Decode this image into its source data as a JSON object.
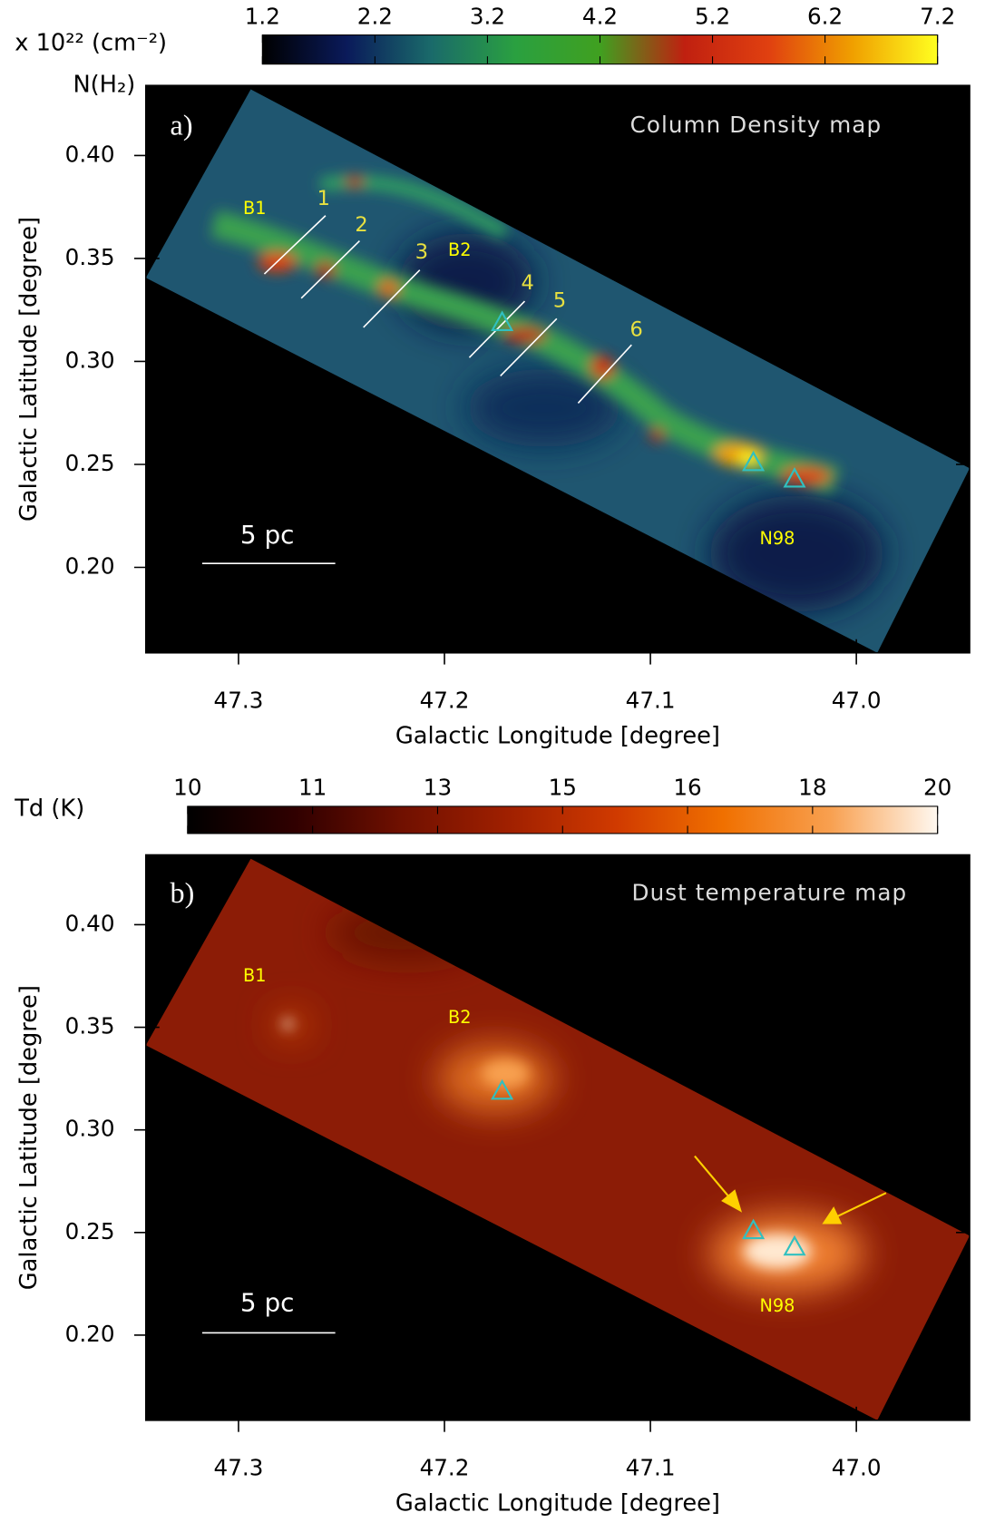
{
  "chart_data": [
    {
      "type": "map",
      "panel_label": "a)",
      "title": "Column Density map",
      "colorbar_label": "x 10²² (cm⁻²)",
      "colorbar_label2": "N(H₂)",
      "colorbar_ticks": [
        1.2,
        2.2,
        3.2,
        4.2,
        5.2,
        6.2,
        7.2
      ],
      "colormap": [
        "#000000",
        "#0a1a5a",
        "#1a6a6a",
        "#2aa040",
        "#40a020",
        "#c02010",
        "#e04010",
        "#f0a000",
        "#ffff20"
      ],
      "xlabel": "Galactic Longitude [degree]",
      "ylabel": "Galactic Latitude [degree]",
      "xlim": [
        47.345,
        46.945
      ],
      "ylim": [
        0.1585,
        0.434
      ],
      "xticks": [
        47.3,
        47.2,
        47.1,
        {
          "value": 47,
          "label": "47.0"
        }
      ],
      "yticks": [
        {
          "value": 0.2,
          "label": "0.20"
        },
        0.25,
        {
          "value": 0.3,
          "label": "0.30"
        },
        0.35,
        {
          "value": 0.4,
          "label": "0.40"
        }
      ],
      "annotations": [
        "B1",
        "B2",
        "N98"
      ],
      "cuts": [
        "1",
        "2",
        "3",
        "4",
        "5",
        "6"
      ],
      "scale_bar": "5 pc",
      "sources": {
        "x": [
          47.172,
          47.05,
          47.03
        ],
        "y": [
          0.319,
          0.251,
          0.243
        ]
      }
    },
    {
      "type": "map",
      "panel_label": "b)",
      "title": "Dust temperature map",
      "colorbar_label": "Td (K)",
      "colorbar_ticks": [
        10,
        11,
        13,
        15,
        16,
        18,
        20
      ],
      "colormap": [
        "#000000",
        "#300000",
        "#701000",
        "#a02000",
        "#d03a00",
        "#f07000",
        "#f8a050",
        "#fff8f0"
      ],
      "xlabel": "Galactic Longitude [degree]",
      "ylabel": "Galactic Latitude [degree]",
      "xlim": [
        47.345,
        46.945
      ],
      "ylim": [
        0.1585,
        0.434
      ],
      "xticks": [
        47.3,
        47.2,
        47.1,
        {
          "value": 47,
          "label": "47.0"
        }
      ],
      "yticks": [
        {
          "value": 0.2,
          "label": "0.20"
        },
        0.25,
        {
          "value": 0.3,
          "label": "0.30"
        },
        0.35,
        {
          "value": 0.4,
          "label": "0.40"
        }
      ],
      "annotations": [
        "B1",
        "B2",
        "N98"
      ],
      "scale_bar": "5 pc",
      "sources": {
        "x": [
          47.172,
          47.05,
          47.03
        ],
        "y": [
          0.319,
          0.251,
          0.243
        ]
      }
    }
  ]
}
